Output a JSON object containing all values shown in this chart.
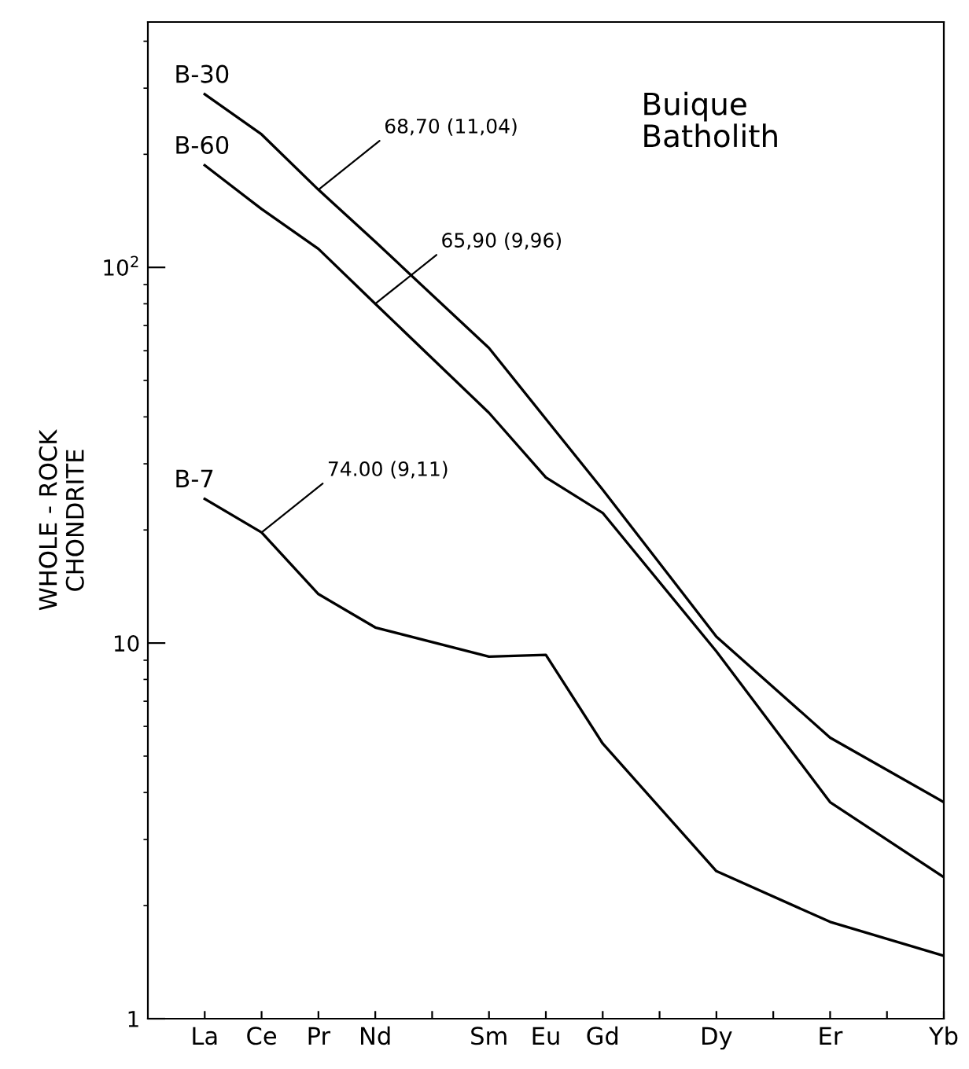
{
  "chart_data": {
    "type": "line",
    "title": "Buique\nBatholith",
    "ylabel": "WHOLE - ROCK\nCHONDRITE",
    "categories": [
      "La",
      "Ce",
      "Pr",
      "Nd",
      null,
      "Sm",
      "Eu",
      "Gd",
      null,
      "Dy",
      null,
      "Er",
      null,
      "Yb"
    ],
    "series": [
      {
        "name": "B-30",
        "color": "#000000",
        "values": [
          289,
          226,
          161,
          117,
          null,
          61,
          39.5,
          25.6,
          null,
          10.4,
          null,
          5.6,
          null,
          3.77
        ]
      },
      {
        "name": "B-60",
        "color": "#000000",
        "values": [
          187,
          143,
          112,
          80,
          null,
          41,
          27.6,
          22.2,
          null,
          9.5,
          null,
          3.77,
          null,
          2.38
        ]
      },
      {
        "name": "B-7",
        "color": "#000000",
        "values": [
          24.2,
          19.7,
          13.5,
          11.0,
          null,
          9.2,
          9.3,
          5.4,
          null,
          2.47,
          null,
          1.81,
          null,
          1.47
        ]
      }
    ],
    "annotations": [
      {
        "text": "68,70 (11,04)",
        "x": "Pr",
        "y": 161
      },
      {
        "text": "65,90 (9,96)",
        "x": "Nd",
        "y": 80
      },
      {
        "text": "74.00 (9,11)",
        "x": "Ce",
        "y": 19.7
      }
    ],
    "log": "y",
    "ylim": [
      1,
      450
    ],
    "yticks": [
      1,
      10,
      {
        "value": 100,
        "label": "10$^{2}$"
      }
    ],
    "grid": false,
    "legend": false,
    "marker": "none",
    "line_style": "solid"
  }
}
